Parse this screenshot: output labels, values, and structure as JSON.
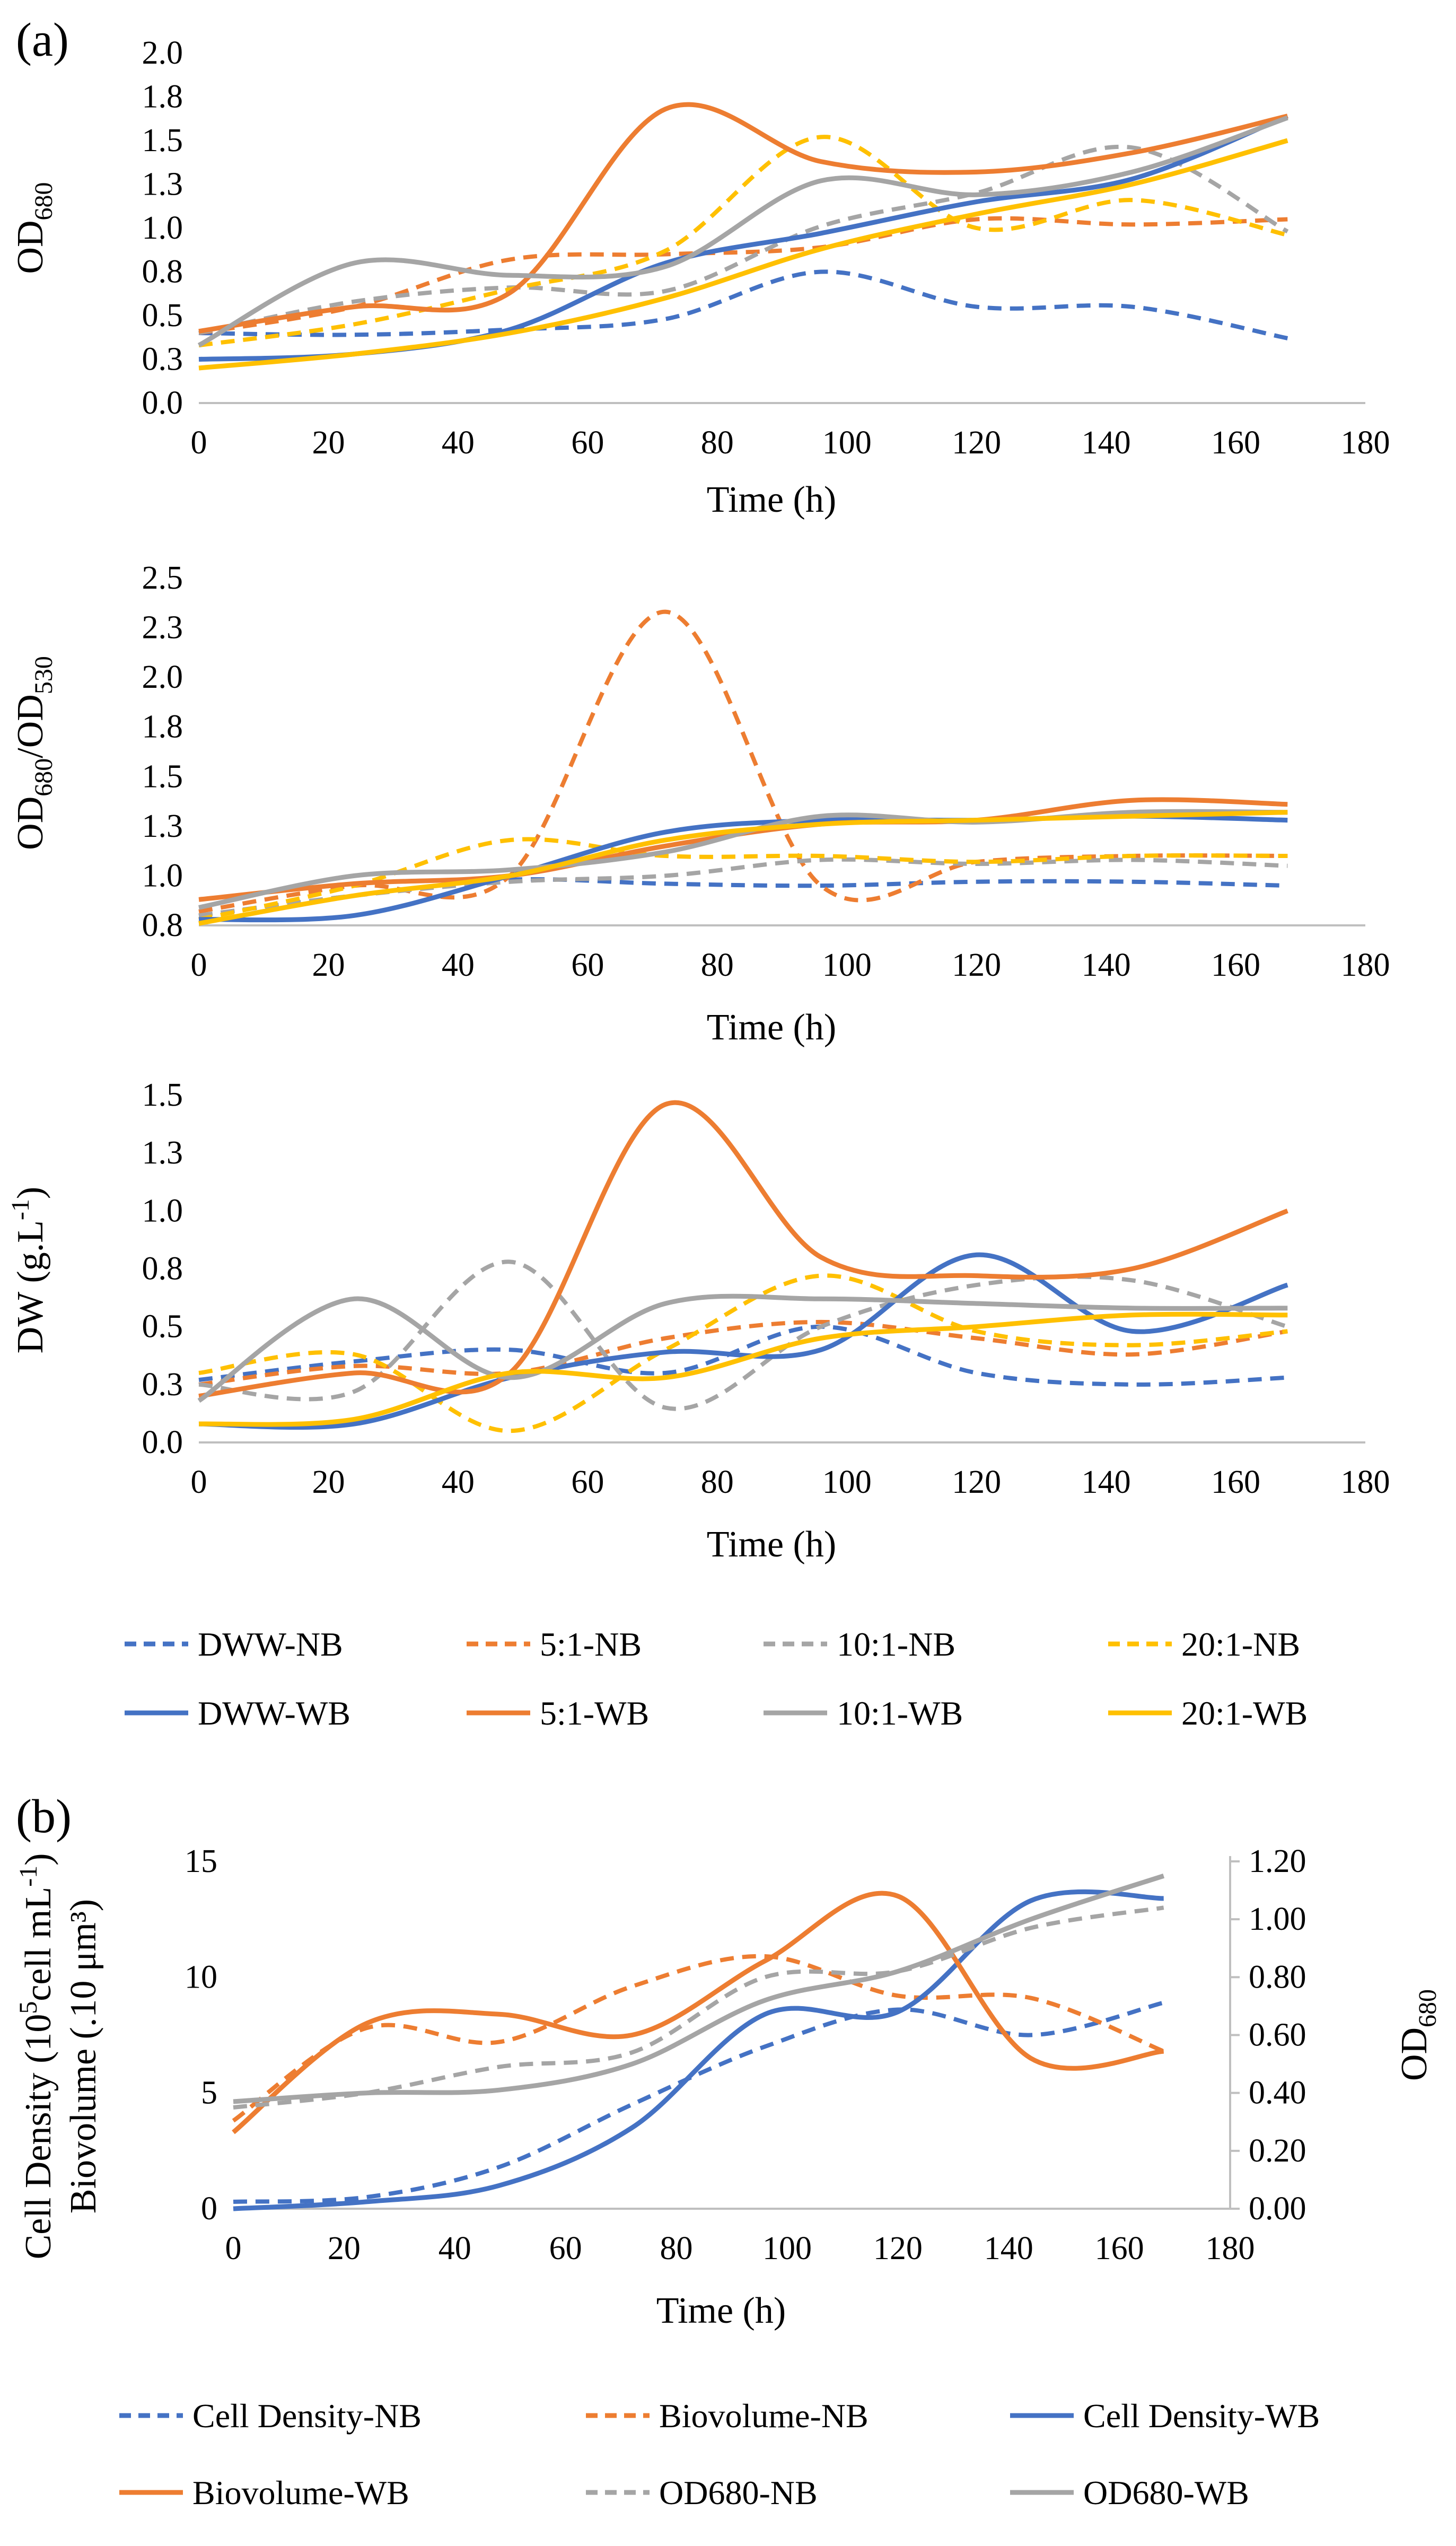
{
  "panel_labels": {
    "a": "(a)",
    "b": "(b)"
  },
  "colors": {
    "DWW": "#4472C4",
    "5:1": "#ED7D31",
    "10:1": "#A5A5A5",
    "20:1": "#FFC000",
    "cell_density": "#4472C4",
    "biovolume": "#ED7D31",
    "od680": "#A5A5A5"
  },
  "legend_a": [
    {
      "label": "DWW-NB",
      "color": "#4472C4",
      "dash": true
    },
    {
      "label": "5:1-NB",
      "color": "#ED7D31",
      "dash": true
    },
    {
      "label": "10:1-NB",
      "color": "#A5A5A5",
      "dash": true
    },
    {
      "label": "20:1-NB",
      "color": "#FFC000",
      "dash": true
    },
    {
      "label": "DWW-WB",
      "color": "#4472C4",
      "dash": false
    },
    {
      "label": "5:1-WB",
      "color": "#ED7D31",
      "dash": false
    },
    {
      "label": "10:1-WB",
      "color": "#A5A5A5",
      "dash": false
    },
    {
      "label": "20:1-WB",
      "color": "#FFC000",
      "dash": false
    }
  ],
  "legend_b": [
    {
      "label": "Cell Density-NB",
      "color": "#4472C4",
      "dash": true
    },
    {
      "label": "Biovolume-NB",
      "color": "#ED7D31",
      "dash": true
    },
    {
      "label": "Cell Density-WB",
      "color": "#4472C4",
      "dash": false
    },
    {
      "label": "Biovolume-WB",
      "color": "#ED7D31",
      "dash": false
    },
    {
      "label": "OD680-NB",
      "color": "#A5A5A5",
      "dash": true
    },
    {
      "label": "OD680-WB",
      "color": "#A5A5A5",
      "dash": false
    }
  ],
  "chart_data": [
    {
      "id": "od680",
      "type": "line",
      "title": "",
      "xlabel": "Time (h)",
      "ylabel_main": "OD",
      "ylabel_sub": "680",
      "xlim": [
        0,
        180
      ],
      "ylim": [
        0,
        2.0
      ],
      "xticks": [
        "0",
        "20",
        "40",
        "60",
        "80",
        "100",
        "120",
        "140",
        "160",
        "180"
      ],
      "yticks": [
        "0.0",
        "0.3",
        "0.5",
        "0.8",
        "1.0",
        "1.3",
        "1.5",
        "1.8",
        "2.0"
      ],
      "ytick_values": [
        0,
        0.25,
        0.5,
        0.75,
        1.0,
        1.25,
        1.5,
        1.75,
        2.0
      ],
      "x": [
        0,
        24,
        48,
        72,
        96,
        120,
        144,
        168
      ],
      "series": [
        {
          "name": "DWW-NB",
          "color": "#4472C4",
          "dash": true,
          "values": [
            0.4,
            0.39,
            0.42,
            0.48,
            0.75,
            0.55,
            0.55,
            0.37
          ]
        },
        {
          "name": "5:1-NB",
          "color": "#ED7D31",
          "dash": true,
          "values": [
            0.4,
            0.55,
            0.82,
            0.85,
            0.89,
            1.05,
            1.02,
            1.05
          ]
        },
        {
          "name": "10:1-NB",
          "color": "#A5A5A5",
          "dash": true,
          "values": [
            0.4,
            0.58,
            0.66,
            0.64,
            1.01,
            1.2,
            1.46,
            0.98
          ]
        },
        {
          "name": "20:1-NB",
          "color": "#FFC000",
          "dash": true,
          "values": [
            0.33,
            0.45,
            0.65,
            0.87,
            1.52,
            1.0,
            1.16,
            0.96
          ]
        },
        {
          "name": "DWW-WB",
          "color": "#4472C4",
          "dash": false,
          "values": [
            0.25,
            0.28,
            0.42,
            0.8,
            0.97,
            1.15,
            1.28,
            1.64
          ]
        },
        {
          "name": "5:1-WB",
          "color": "#ED7D31",
          "dash": false,
          "values": [
            0.41,
            0.55,
            0.63,
            1.68,
            1.38,
            1.32,
            1.43,
            1.64
          ]
        },
        {
          "name": "10:1-WB",
          "color": "#A5A5A5",
          "dash": false,
          "values": [
            0.33,
            0.8,
            0.73,
            0.78,
            1.27,
            1.19,
            1.32,
            1.63
          ]
        },
        {
          "name": "20:1-WB",
          "color": "#FFC000",
          "dash": false,
          "values": [
            0.2,
            0.28,
            0.4,
            0.6,
            0.88,
            1.08,
            1.25,
            1.5
          ]
        }
      ]
    },
    {
      "id": "ratio",
      "type": "line",
      "title": "",
      "xlabel": "Time (h)",
      "ylabel_main": "OD",
      "ylabel_sub": "680",
      "ylabel_mid": "/OD",
      "ylabel_sub2": "530",
      "xlim": [
        0,
        180
      ],
      "ylim": [
        0.75,
        2.5
      ],
      "xticks": [
        "0",
        "20",
        "40",
        "60",
        "80",
        "100",
        "120",
        "140",
        "160",
        "180"
      ],
      "yticks": [
        "0.8",
        "1.0",
        "1.3",
        "1.5",
        "1.8",
        "2.0",
        "2.3",
        "2.5"
      ],
      "ytick_values": [
        0.75,
        1.0,
        1.25,
        1.5,
        1.75,
        2.0,
        2.25,
        2.5
      ],
      "x": [
        0,
        24,
        48,
        72,
        96,
        120,
        144,
        168
      ],
      "series": [
        {
          "name": "DWW-NB",
          "color": "#4472C4",
          "dash": true,
          "values": [
            0.8,
            0.9,
            0.98,
            0.96,
            0.95,
            0.97,
            0.97,
            0.95
          ]
        },
        {
          "name": "5:1-NB",
          "color": "#ED7D31",
          "dash": true,
          "values": [
            0.82,
            0.95,
            1.0,
            2.33,
            0.95,
            1.07,
            1.1,
            1.1
          ]
        },
        {
          "name": "10:1-NB",
          "color": "#A5A5A5",
          "dash": true,
          "values": [
            0.8,
            0.9,
            0.97,
            1.0,
            1.08,
            1.06,
            1.08,
            1.05
          ]
        },
        {
          "name": "20:1-NB",
          "color": "#FFC000",
          "dash": true,
          "values": [
            0.78,
            0.95,
            1.18,
            1.1,
            1.1,
            1.07,
            1.1,
            1.1
          ]
        },
        {
          "name": "DWW-WB",
          "color": "#4472C4",
          "dash": false,
          "values": [
            0.78,
            0.8,
            1.0,
            1.22,
            1.28,
            1.28,
            1.3,
            1.28
          ]
        },
        {
          "name": "5:1-WB",
          "color": "#ED7D31",
          "dash": false,
          "values": [
            0.88,
            0.96,
            1.0,
            1.15,
            1.26,
            1.28,
            1.38,
            1.36
          ]
        },
        {
          "name": "10:1-WB",
          "color": "#A5A5A5",
          "dash": false,
          "values": [
            0.84,
            1.0,
            1.03,
            1.12,
            1.3,
            1.27,
            1.32,
            1.32
          ]
        },
        {
          "name": "20:1-WB",
          "color": "#FFC000",
          "dash": false,
          "values": [
            0.76,
            0.9,
            1.0,
            1.18,
            1.26,
            1.28,
            1.3,
            1.32
          ]
        }
      ]
    },
    {
      "id": "dw",
      "type": "line",
      "title": "",
      "xlabel": "Time (h)",
      "ylabel_main": "DW (g.L",
      "ylabel_sup": "-1",
      "ylabel_end": ")",
      "xlim": [
        0,
        180
      ],
      "ylim": [
        0,
        1.5
      ],
      "xticks": [
        "0",
        "20",
        "40",
        "60",
        "80",
        "100",
        "120",
        "140",
        "160",
        "180"
      ],
      "yticks": [
        "0.0",
        "0.3",
        "0.5",
        "0.8",
        "1.0",
        "1.3",
        "1.5"
      ],
      "ytick_values": [
        0,
        0.25,
        0.5,
        0.75,
        1.0,
        1.25,
        1.5
      ],
      "x": [
        0,
        24,
        48,
        72,
        96,
        120,
        144,
        168
      ],
      "series": [
        {
          "name": "DWW-NB",
          "color": "#4472C4",
          "dash": true,
          "values": [
            0.27,
            0.35,
            0.4,
            0.3,
            0.5,
            0.3,
            0.25,
            0.28
          ]
        },
        {
          "name": "5:1-NB",
          "color": "#ED7D31",
          "dash": true,
          "values": [
            0.25,
            0.33,
            0.3,
            0.45,
            0.52,
            0.45,
            0.38,
            0.48
          ]
        },
        {
          "name": "10:1-NB",
          "color": "#A5A5A5",
          "dash": true,
          "values": [
            0.25,
            0.22,
            0.78,
            0.15,
            0.5,
            0.68,
            0.7,
            0.5
          ]
        },
        {
          "name": "20:1-NB",
          "color": "#FFC000",
          "dash": true,
          "values": [
            0.3,
            0.38,
            0.05,
            0.4,
            0.72,
            0.48,
            0.42,
            0.48
          ]
        },
        {
          "name": "DWW-WB",
          "color": "#4472C4",
          "dash": false,
          "values": [
            0.08,
            0.08,
            0.28,
            0.39,
            0.4,
            0.81,
            0.48,
            0.68
          ]
        },
        {
          "name": "5:1-WB",
          "color": "#ED7D31",
          "dash": false,
          "values": [
            0.2,
            0.3,
            0.3,
            1.46,
            0.8,
            0.72,
            0.75,
            1.0
          ]
        },
        {
          "name": "10:1-WB",
          "color": "#A5A5A5",
          "dash": false,
          "values": [
            0.18,
            0.62,
            0.28,
            0.6,
            0.62,
            0.6,
            0.58,
            0.58
          ]
        },
        {
          "name": "20:1-WB",
          "color": "#FFC000",
          "dash": false,
          "values": [
            0.08,
            0.1,
            0.3,
            0.28,
            0.45,
            0.5,
            0.55,
            0.55
          ]
        }
      ]
    },
    {
      "id": "panel_b",
      "type": "line",
      "title": "",
      "xlabel": "Time (h)",
      "ylabel_left_line1_main": "Cell Density (10",
      "ylabel_left_line1_sup": "5",
      "ylabel_left_line1_mid": "cell mL",
      "ylabel_left_line1_sup2": "-1",
      "ylabel_left_line1_end": ")",
      "ylabel_left_line2": "Biovolume (.10 μm³)",
      "ylabel_right_main": "OD",
      "ylabel_right_sub": "680",
      "xlim": [
        0,
        180
      ],
      "ylim_left": [
        0,
        15
      ],
      "ylim_right": [
        0,
        1.2
      ],
      "xticks": [
        "0",
        "20",
        "40",
        "60",
        "80",
        "100",
        "120",
        "140",
        "160",
        "180"
      ],
      "yticks_left": [
        "0",
        "5",
        "10",
        "15"
      ],
      "ytick_values_left": [
        0,
        5,
        10,
        15
      ],
      "yticks_right": [
        "0.00",
        "0.20",
        "0.40",
        "0.60",
        "0.80",
        "1.00",
        "1.20"
      ],
      "ytick_values_right": [
        0,
        0.2,
        0.4,
        0.6,
        0.8,
        1.0,
        1.2
      ],
      "x": [
        0,
        24,
        48,
        72,
        96,
        120,
        144,
        168
      ],
      "series": [
        {
          "name": "Cell Density-NB",
          "axis": "left",
          "color": "#4472C4",
          "dash": true,
          "values": [
            0.3,
            0.5,
            1.8,
            4.5,
            7.0,
            8.6,
            7.5,
            8.9
          ]
        },
        {
          "name": "Biovolume-NB",
          "axis": "left",
          "color": "#ED7D31",
          "dash": true,
          "values": [
            3.8,
            7.8,
            7.2,
            9.6,
            10.9,
            9.2,
            9.1,
            6.8
          ]
        },
        {
          "name": "Cell Density-WB",
          "axis": "left",
          "color": "#4472C4",
          "dash": false,
          "values": [
            0.0,
            0.3,
            1.0,
            3.5,
            8.4,
            8.5,
            13.3,
            13.4
          ]
        },
        {
          "name": "Biovolume-WB",
          "axis": "left",
          "color": "#ED7D31",
          "dash": false,
          "values": [
            3.3,
            8.0,
            8.4,
            7.5,
            10.7,
            13.5,
            6.5,
            6.8
          ]
        },
        {
          "name": "OD680-NB",
          "axis": "right",
          "color": "#A5A5A5",
          "dash": true,
          "values": [
            0.35,
            0.4,
            0.49,
            0.54,
            0.8,
            0.82,
            0.97,
            1.04
          ]
        },
        {
          "name": "OD680-WB",
          "axis": "right",
          "color": "#A5A5A5",
          "dash": false,
          "values": [
            0.37,
            0.4,
            0.41,
            0.5,
            0.72,
            0.82,
            1.0,
            1.15
          ]
        }
      ]
    }
  ]
}
